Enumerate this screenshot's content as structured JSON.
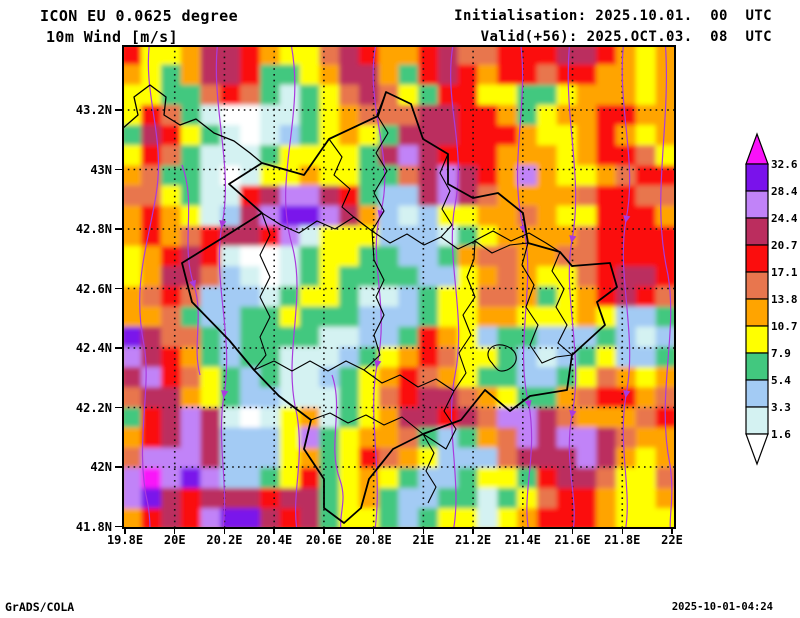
{
  "header": {
    "model": "ICON EU 0.0625 degree",
    "variable": "10m Wind [m/s]",
    "initialisation": "Initialisation: 2025.10.01.  00  UTC",
    "valid": "Valid(+56): 2025.OCT.03.  08  UTC"
  },
  "footer": {
    "credit": "GrADS/COLA",
    "timestamp": "2025-10-01-04:24"
  },
  "axes": {
    "lon_ticks": [
      "19.8E",
      "20E",
      "20.2E",
      "20.4E",
      "20.6E",
      "20.8E",
      "21E",
      "21.2E",
      "21.4E",
      "21.6E",
      "21.8E",
      "22E"
    ],
    "lat_ticks": [
      "43.2N",
      "43N",
      "42.8N",
      "42.6N",
      "42.4N",
      "42.2N",
      "42N",
      "41.8N"
    ]
  },
  "legend": {
    "values": [
      "32.6",
      "28.4",
      "24.4",
      "20.7",
      "17.1",
      "13.8",
      "10.7",
      "7.9",
      "5.4",
      "3.3",
      "1.6"
    ],
    "box_colors_top_to_bottom": [
      "#7A12EB",
      "#C183F8",
      "#BB2D5E",
      "#FB0D0D",
      "#E8764E",
      "#FFA400",
      "#FFFF00",
      "#42C87F",
      "#A3CBF4",
      "#D4F2F2"
    ],
    "above_max_color": "#F912F9",
    "below_min_color": "#FFFFFF"
  },
  "chart_data": {
    "type": "heatmap",
    "title": "10m Wind [m/s]",
    "lon_range": [
      "19.8E",
      "22E"
    ],
    "lat_range": [
      "41.8N",
      "43.2N"
    ],
    "scale_levels": [
      1.6,
      3.3,
      5.4,
      7.9,
      10.7,
      13.8,
      17.1,
      20.7,
      24.4,
      28.4,
      32.6
    ],
    "palette": {
      "W": "#FFFFFF",
      "c": "#D4F2F2",
      "b": "#A3CBF4",
      "g": "#42C87F",
      "y": "#FFFF00",
      "o": "#FFA400",
      "s": "#E8764E",
      "r": "#FB0D0D",
      "m": "#BB2D5E",
      "v": "#C183F8",
      "p": "#7A12EB",
      "M": "#F912F9"
    },
    "grid_cols": 28,
    "grid_rows_top_to_bottom": [
      "ryyommroyysmroormssrrrmmroyo",
      "oygommrggyommogrmrorrsrrooyo",
      "yyggsrsgcgysmsygrryyggyoooyo",
      "yrsgcWWccgyosssmmrrogyoorroo",
      "gmrygcWcbgyoygmmmrrroyyoroyo",
      "yrsgcccgyyyygmvmrrroooyorrsy",
      "osggcWcyyoyyggsmvmrovoyyosrr",
      "ssygccrmvvmrgbbmvmsoooosrrss",
      "oroycbmvppvmobcbyyoosoyyrrro",
      "orosrmmrvcyyybbbcgyoooosrrrr",
      "yormrcWWcgyyggbbgossoossrrrr",
      "yommsbcWcgyggggbbyosoyysrmmr",
      "osrsbbbcgyygccbgyyssogyormrs",
      "oosgbbggygggbbbgyyooyyyoybbg",
      "pmssgbggggccbbgroybggbbbgbcb",
      "vmrogbggcccbgyorsyygbcbgybbg",
      "mvrsygbgccbgyorsoyggbbgysoyo",
      "smmoygbbcccgysrmmsoyggosrros",
      "grmvmcWcyocgyommrmsvvmsooosr",
      "ormvmbbbyvgyoosgbgosvmvvmsoo",
      "svvvmbbbyogyrsoybbbsmmmvmoyo",
      "vMvpvbbgyrgyoygbbgyygrmmsyys",
      "vpmrmmmrmmgyogbbggcgysrroyyo",
      "ormrvppmrmgyygbgyycyorrroyyy"
    ],
    "overlay_colors": {
      "border_color": "#000000",
      "streamline_color": "#A93BDD",
      "graticule_color": "#111111"
    }
  }
}
